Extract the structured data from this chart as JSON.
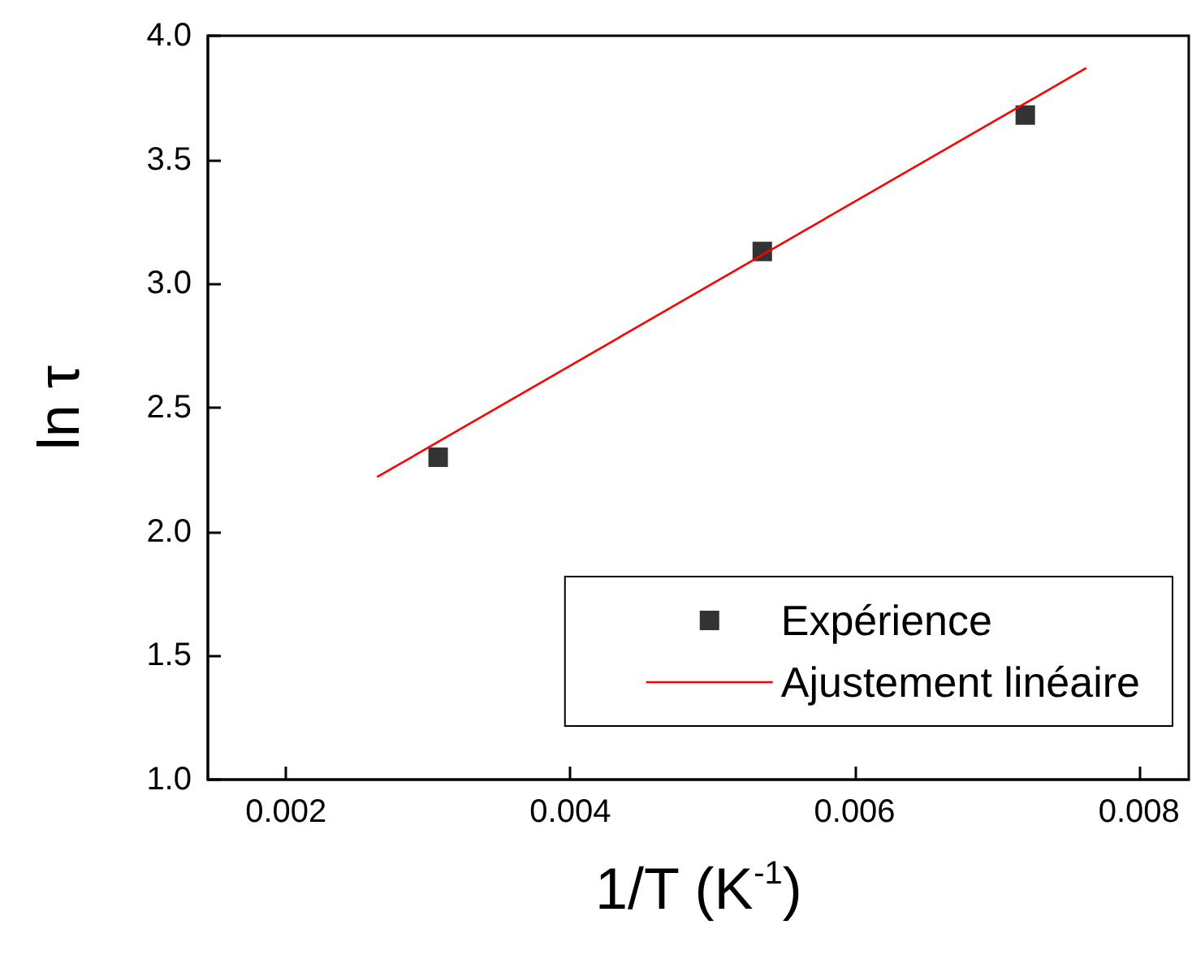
{
  "chart_data": {
    "type": "scatter",
    "xlabel": "1/T (K$^{-1}$)",
    "ylabel": "ln τ",
    "series": [
      {
        "name": "Expérience",
        "color": "#000000",
        "marker": "square",
        "x": [
          0.00307,
          0.00535,
          0.0072
        ],
        "values": [
          2.3,
          3.13,
          3.68
        ]
      },
      {
        "name": "Ajustement linéaire",
        "type": "line",
        "color": "#ff0000",
        "marker": "none",
        "line_style": "solid",
        "x": [
          0.00264,
          0.00763
        ],
        "values": [
          2.22,
          3.87
        ]
      }
    ],
    "xlim": [
      0.00145,
      0.00835
    ],
    "xticks": [
      0.002,
      0.004,
      0.006,
      0.008
    ],
    "ylim": [
      1.0,
      4.0
    ],
    "yticks": [
      {
        "value": 1.0,
        "label": "1.0"
      },
      {
        "value": 1.5,
        "label": "1.5"
      },
      {
        "value": 2.0,
        "label": "2.0"
      },
      {
        "value": 2.5,
        "label": "2.5"
      },
      {
        "value": 3.0,
        "label": "3.0"
      },
      {
        "value": 3.5,
        "label": "3.5"
      },
      {
        "value": 4.0,
        "label": "4.0"
      }
    ],
    "legend": "bottom right"
  }
}
